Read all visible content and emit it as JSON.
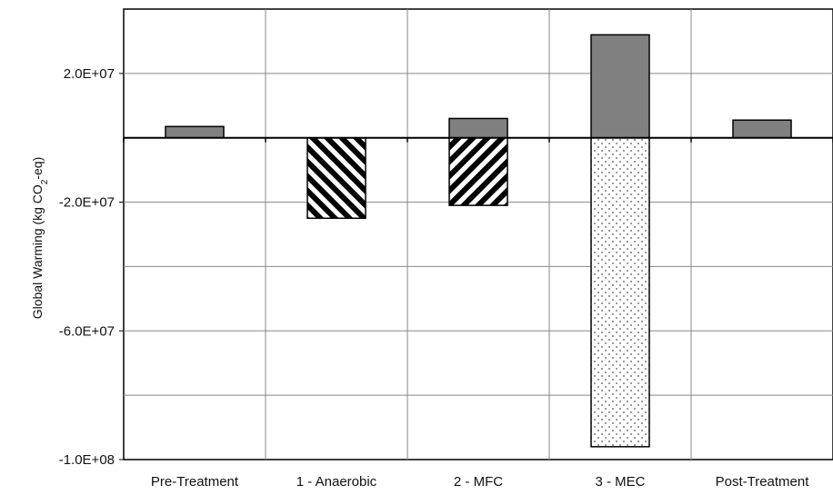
{
  "chart_data": {
    "type": "bar",
    "categories": [
      "Pre-Treatment",
      "1 - Anaerobic",
      "2 - MFC",
      "3 - MEC",
      "Post-Treatment"
    ],
    "ylabel_parts": [
      "Global Warming (kg CO",
      "2",
      "-eq)"
    ],
    "yticks": [
      "2.0E+07",
      "-2.0E+07",
      "-6.0E+07",
      "-1.0E+08"
    ],
    "yticks_values": [
      20000000,
      -20000000,
      -60000000,
      -100000000
    ],
    "ylim": [
      -100000000,
      40000000
    ],
    "grid": true,
    "series": [
      {
        "values": [
          3500000,
          0,
          6000000,
          32000000,
          5500000
        ],
        "fill": "#808080"
      },
      {
        "values": [
          0,
          -25000000,
          -21000000,
          0,
          0
        ],
        "pattern": "diagonal-stripes"
      },
      {
        "values": [
          0,
          0,
          0,
          -96000000,
          0
        ],
        "pattern": "dots"
      }
    ],
    "colors": {
      "solid": "#808080",
      "stroke": "#000000",
      "grid": "#888888"
    }
  }
}
